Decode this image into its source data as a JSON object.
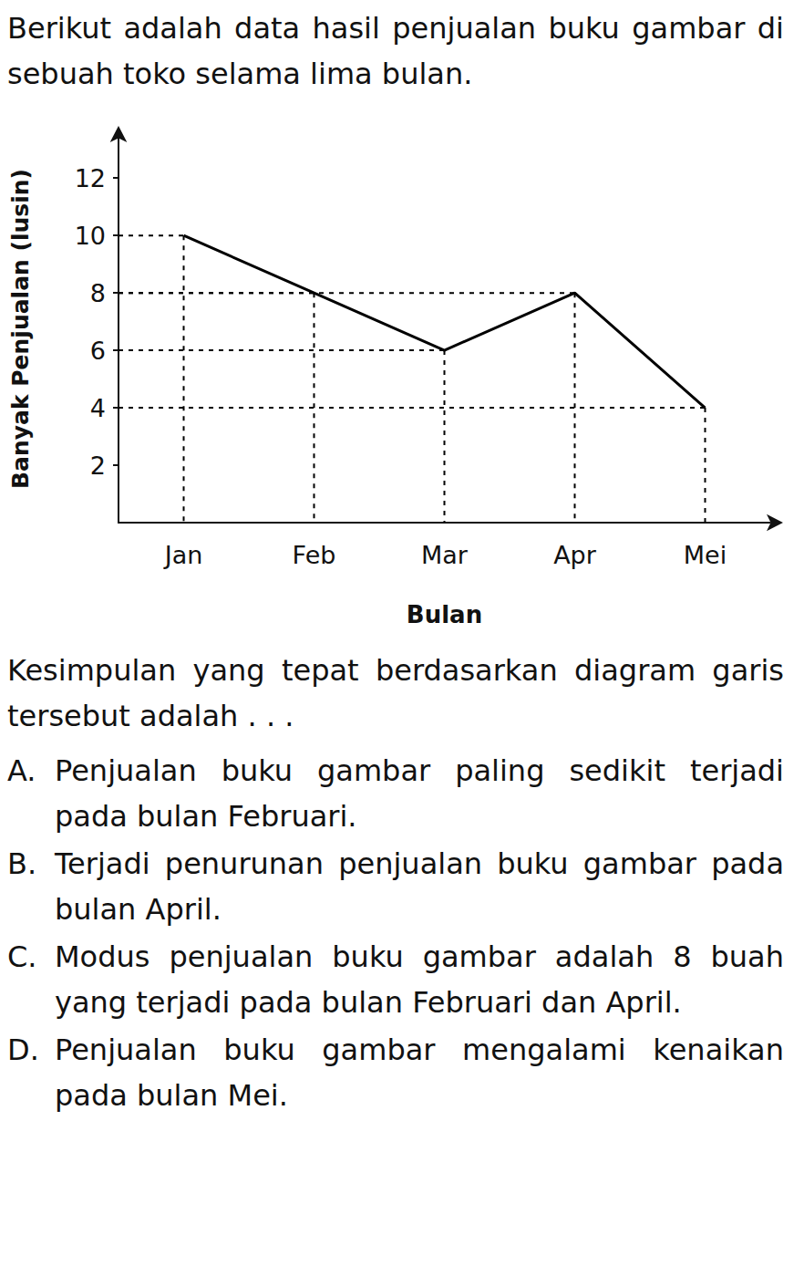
{
  "document": {
    "intro": "Berikut adalah data hasil penjualan buku gambar di sebuah toko selama lima bulan.",
    "question": "Kesimpulan yang tepat berdasarkan diagram garis tersebut adalah . . .",
    "options": [
      {
        "letter": "A.",
        "text": "Penjualan buku gambar paling sedikit terjadi pada bulan Februari."
      },
      {
        "letter": "B.",
        "text": "Terjadi penurunan penjualan buku gambar pada bulan April."
      },
      {
        "letter": "C.",
        "text": "Modus penjualan buku gambar adalah 8 buah yang terjadi pada bulan Februari dan April."
      },
      {
        "letter": "D.",
        "text": "Penjualan buku gambar mengalami kenaikan pada bulan Mei."
      }
    ]
  },
  "chart_data": {
    "type": "line",
    "xlabel": "Bulan",
    "ylabel": "Banyak Penjualan (lusin)",
    "categories": [
      "Jan",
      "Feb",
      "Mar",
      "Apr",
      "Mei"
    ],
    "values": [
      10,
      8,
      6,
      8,
      4
    ],
    "color": "#000000",
    "ylim": [
      0,
      13.5
    ],
    "yticks": [
      2,
      4,
      6,
      8,
      10,
      12
    ]
  }
}
